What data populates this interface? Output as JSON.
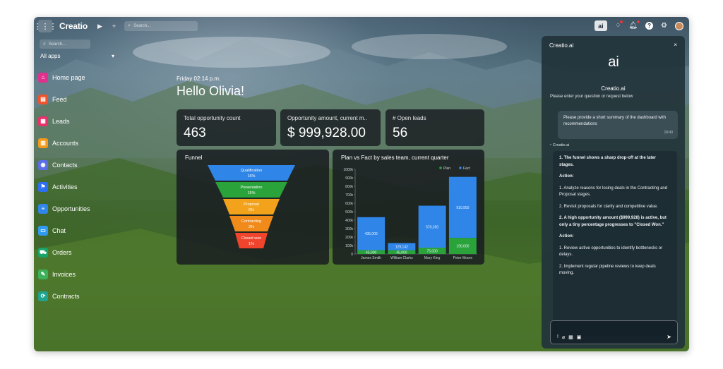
{
  "topbar": {
    "app_name": "Creatio",
    "search_placeholder": "Search...",
    "ai_label": "ai"
  },
  "sidebar": {
    "search_placeholder": "Search...",
    "section_label": "All apps",
    "items": [
      {
        "label": "Home page",
        "color": "#e0308e"
      },
      {
        "label": "Feed",
        "color": "#f0532c"
      },
      {
        "label": "Leads",
        "color": "#e8306a"
      },
      {
        "label": "Accounts",
        "color": "#f29a1b"
      },
      {
        "label": "Contacts",
        "color": "#5a6ee8"
      },
      {
        "label": "Activities",
        "color": "#2d6ff2"
      },
      {
        "label": "Opportunities",
        "color": "#2f86e8"
      },
      {
        "label": "Chat",
        "color": "#2f9af0"
      },
      {
        "label": "Orders",
        "color": "#18a36a"
      },
      {
        "label": "Invoices",
        "color": "#3db05a"
      },
      {
        "label": "Contracts",
        "color": "#1fa38f"
      }
    ]
  },
  "dashboard": {
    "time": "Friday 02:14 p.m.",
    "greeting": "Hello Olivia!",
    "kpis": [
      {
        "label": "Total opportunity count",
        "value": "463"
      },
      {
        "label": "Opportunity amount, current m..",
        "value": "$ 999,928.00"
      },
      {
        "label": "# Open leads",
        "value": "56"
      }
    ]
  },
  "funnel": {
    "title": "Funnel",
    "stages": [
      {
        "name": "Qualification",
        "pct": "16%",
        "color": "#2f86e8"
      },
      {
        "name": "Presentation",
        "pct": "15%",
        "color": "#2aa33a"
      },
      {
        "name": "Proposal",
        "pct": "6%",
        "color": "#f2a21b"
      },
      {
        "name": "Contracting",
        "pct": "3%",
        "color": "#f08a1b"
      },
      {
        "name": "Closed won",
        "pct": "1%",
        "color": "#f0442c"
      }
    ]
  },
  "chart_data": {
    "type": "bar",
    "title": "Plan vs Fact by sales team, current quarter",
    "categories": [
      "James Smith",
      "William Clarks",
      "Mary King",
      "Peter Moore"
    ],
    "series": [
      {
        "name": "Plan",
        "color": "#2aa33a",
        "values": [
          45000,
          45000,
          75000,
          190000
        ]
      },
      {
        "name": "Fact",
        "color": "#2f86e8",
        "values": [
          435000,
          129142,
          570350,
          910950
        ]
      }
    ],
    "bar_labels": {
      "Plan": [
        "45,000",
        "45,000",
        "75,000",
        "190,000"
      ],
      "Fact": [
        "435,000",
        "129,142",
        "570,350",
        "910,950"
      ]
    },
    "y_ticks": [
      "1000k",
      "900k",
      "800k",
      "700k",
      "600k",
      "500k",
      "400k",
      "300k",
      "200k",
      "100k",
      "0"
    ],
    "ylim": [
      0,
      1000000
    ],
    "legend_position": "top-right"
  },
  "ai_panel": {
    "header": "Creatio.ai",
    "close_label": "×",
    "logo_text": "ai",
    "name": "Creatio.ai",
    "subtitle": "Please enter your question or request below",
    "user_message": "Please provide a short summary of the dashboard with recommendations",
    "user_time": "18:40",
    "assistant_tag": "Creatio.ai",
    "reply": {
      "point1_title": "1. The funnel shows a sharp drop-off at the later stages.",
      "action1": "Action:",
      "action1_1": "1. Analyze reasons for losing deals in the Contracting and Proposal stages.",
      "action1_2": "2. Revisit proposals for clarity and competitive value.",
      "point2_title": "2. A high opportunity amount ($999,928) is active, but only a tiny percentage progresses to \"Closed Won.\"",
      "action2": "Action:",
      "action2_1": "1. Review active opportunities to identify bottlenecks or delays.",
      "action2_2": "2. Implement regular pipeline reviews to keep deals moving."
    },
    "send_label": "➤"
  }
}
